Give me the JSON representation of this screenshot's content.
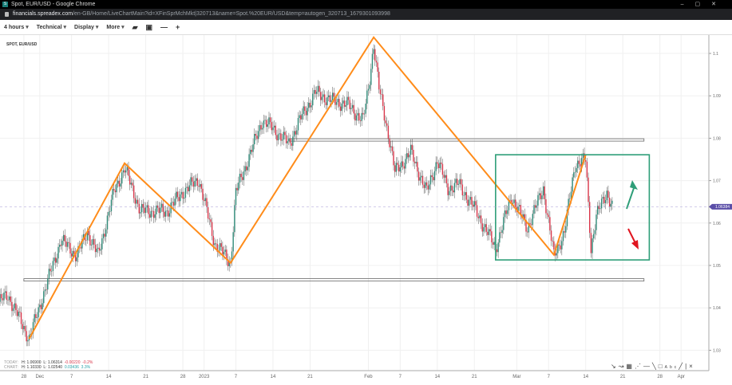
{
  "window": {
    "title": "Spot, EUR/USD - Google Chrome",
    "favicon": "S",
    "url_host": "financials.spreadex.com",
    "url_path": "/en-GB/Home/LiveChartMain?id=XFinSprMchMkt|320713&name=Spot.%20EUR/USD&temp=autogen_320713_1679301093998"
  },
  "toolbar": {
    "interval": "4 hours",
    "technical": "Technical",
    "display": "Display",
    "more": "More",
    "icons": [
      "folder-open-icon",
      "save-icon",
      "zoom-out-icon",
      "zoom-in-icon"
    ]
  },
  "chart": {
    "symbol": "SPOT, EUR/USD",
    "last_price": "1.06384",
    "last_price_value": 1.06384,
    "today": {
      "label": "TODAY:",
      "h": "H: 1.06900",
      "l": "L: 1.06314",
      "chg": "-0.00220",
      "pct": "-0.2%"
    },
    "range": {
      "label": "CHART:",
      "h": "H: 1.10330",
      "l": "L: 1.02540",
      "chg": "0.03436",
      "pct": "3.3%"
    },
    "colors": {
      "up": "#2f8a78",
      "down": "#d9364a",
      "zigzag": "#ff8c1a",
      "box": "#2e9e78",
      "price_tag": "#5b4fa8"
    },
    "y_ticks": [
      "1.1",
      "1.09",
      "1.08",
      "1.07",
      "1.06",
      "1.05",
      "1.04",
      "1.03"
    ],
    "y_tick_values": [
      1.1,
      1.09,
      1.08,
      1.07,
      1.06,
      1.05,
      1.04,
      1.03
    ],
    "x_ticks": [
      {
        "label": "28",
        "date": "2022-11-28"
      },
      {
        "label": "Dec",
        "date": "2022-12-01"
      },
      {
        "label": "7",
        "date": "2022-12-07"
      },
      {
        "label": "14",
        "date": "2022-12-14"
      },
      {
        "label": "21",
        "date": "2022-12-21"
      },
      {
        "label": "28",
        "date": "2022-12-28"
      },
      {
        "label": "2023",
        "date": "2023-01-01"
      },
      {
        "label": "7",
        "date": "2023-01-07"
      },
      {
        "label": "14",
        "date": "2023-01-14"
      },
      {
        "label": "21",
        "date": "2023-01-21"
      },
      {
        "label": "Feb",
        "date": "2023-02-01"
      },
      {
        "label": "7",
        "date": "2023-02-07"
      },
      {
        "label": "14",
        "date": "2023-02-14"
      },
      {
        "label": "21",
        "date": "2023-02-21"
      },
      {
        "label": "Mar",
        "date": "2023-03-01"
      },
      {
        "label": "7",
        "date": "2023-03-07"
      },
      {
        "label": "14",
        "date": "2023-03-14"
      },
      {
        "label": "21",
        "date": "2023-03-21"
      },
      {
        "label": "28",
        "date": "2023-03-28"
      },
      {
        "label": "Apr",
        "date": "2023-04-01"
      }
    ],
    "price_path": [
      [
        "2022-11-23",
        1.0412
      ],
      [
        "2022-11-25",
        1.043
      ],
      [
        "2022-11-29",
        1.0327
      ],
      [
        "2022-12-05",
        1.056
      ],
      [
        "2022-12-08",
        1.0523
      ],
      [
        "2022-12-10",
        1.0579
      ],
      [
        "2022-12-12",
        1.0523
      ],
      [
        "2022-12-15",
        1.0673
      ],
      [
        "2022-12-17",
        1.073
      ],
      [
        "2022-12-20",
        1.0628
      ],
      [
        "2022-12-25",
        1.0628
      ],
      [
        "2022-12-28",
        1.0673
      ],
      [
        "2022-12-31",
        1.0703
      ],
      [
        "2023-01-03",
        1.0553
      ],
      [
        "2023-01-06",
        1.0506
      ],
      [
        "2023-01-07",
        1.0673
      ],
      [
        "2023-01-09",
        1.0739
      ],
      [
        "2023-01-12",
        1.0842
      ],
      [
        "2023-01-14",
        1.0823
      ],
      [
        "2023-01-17",
        1.0786
      ],
      [
        "2023-01-19",
        1.0842
      ],
      [
        "2023-01-22",
        1.0908
      ],
      [
        "2023-01-25",
        1.0889
      ],
      [
        "2023-01-28",
        1.088
      ],
      [
        "2023-01-31",
        1.0842
      ],
      [
        "2023-02-01",
        1.0917
      ],
      [
        "2023-02-02",
        1.1021
      ],
      [
        "2023-02-03",
        1.0917
      ],
      [
        "2023-02-05",
        1.0795
      ],
      [
        "2023-02-06",
        1.072
      ],
      [
        "2023-02-09",
        1.0767
      ],
      [
        "2023-02-12",
        1.0673
      ],
      [
        "2023-02-14",
        1.0748
      ],
      [
        "2023-02-16",
        1.0682
      ],
      [
        "2023-02-18",
        1.0692
      ],
      [
        "2023-02-21",
        1.0635
      ],
      [
        "2023-02-25",
        1.0541
      ],
      [
        "2023-02-28",
        1.0663
      ],
      [
        "2023-03-03",
        1.0588
      ],
      [
        "2023-03-06",
        1.0682
      ],
      [
        "2023-03-08",
        1.0522
      ],
      [
        "2023-03-10",
        1.0579
      ],
      [
        "2023-03-12",
        1.0739
      ],
      [
        "2023-03-14",
        1.0748
      ],
      [
        "2023-03-15",
        1.0541
      ],
      [
        "2023-03-16",
        1.0616
      ],
      [
        "2023-03-18",
        1.0673
      ],
      [
        "2023-03-19",
        1.0638
      ]
    ],
    "zigzag": [
      [
        "2022-11-29",
        1.0327
      ],
      [
        "2022-12-17",
        1.0741
      ],
      [
        "2023-01-06",
        1.0506
      ],
      [
        "2023-02-02",
        1.1038
      ],
      [
        "2023-03-08",
        1.0525
      ],
      [
        "2023-03-14",
        1.0761
      ]
    ],
    "levels": [
      {
        "from": "2023-01-17",
        "to": "2023-03-25",
        "price": 1.0795
      },
      {
        "from": "2022-11-28",
        "to": "2023-03-25",
        "price": 1.0465
      }
    ],
    "box": {
      "from": "2023-02-25",
      "to": "2023-03-26",
      "top": 1.0761,
      "bottom": 1.0513
    },
    "arrows": [
      {
        "dir": "up",
        "color": "#2e9e78"
      },
      {
        "dir": "down",
        "color": "#e0151f"
      }
    ]
  },
  "drawing_tools": [
    "pointer-icon",
    "curve-icon",
    "grid-icon",
    "fan-icon",
    "horizontal-line-icon",
    "trend-line-icon",
    "rectangle-icon",
    "text-icon",
    "ray-icon",
    "vertical-line-icon",
    "close-icon"
  ]
}
